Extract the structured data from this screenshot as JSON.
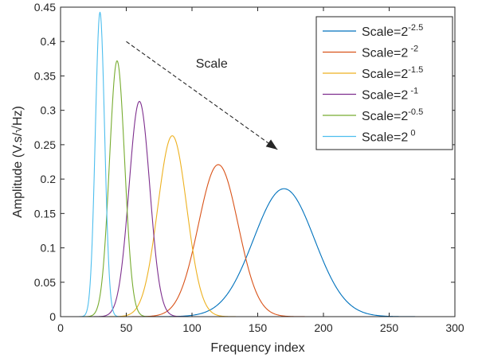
{
  "chart_data": {
    "type": "line",
    "xlabel": "Frequency index",
    "ylabel": "Amplitude (V.s/√Hz)",
    "xlim": [
      0,
      300
    ],
    "ylim": [
      0,
      0.45
    ],
    "x_ticks": [
      0,
      50,
      100,
      150,
      200,
      250,
      300
    ],
    "y_ticks": [
      0,
      0.05,
      0.1,
      0.15,
      0.2,
      0.25,
      0.3,
      0.35,
      0.4,
      0.45
    ],
    "x_tick_labels": [
      "0",
      "50",
      "100",
      "150",
      "200",
      "250",
      "300"
    ],
    "y_tick_labels": [
      "0",
      "0.05",
      "0.1",
      "0.15",
      "0.2",
      "0.25",
      "0.3",
      "0.35",
      "0.4",
      "0.45"
    ],
    "grid": false,
    "legend_position": "top-right",
    "series": [
      {
        "name": "Scale=2^-2.5",
        "label_base": "Scale=2",
        "label_exp": "-2.5",
        "color": "#0072BD",
        "x": [
          100,
          120,
          140,
          150,
          160,
          170,
          180,
          190,
          200,
          220,
          240,
          260
        ],
        "y": [
          0.001,
          0.018,
          0.09,
          0.137,
          0.175,
          0.186,
          0.175,
          0.137,
          0.09,
          0.018,
          0.001,
          0.0
        ]
      },
      {
        "name": "Scale=2^-2",
        "label_base": "Scale=2",
        "label_exp": " -2",
        "color": "#D95319",
        "x": [
          70,
          85,
          100,
          110,
          120,
          130,
          140,
          155,
          170
        ],
        "y": [
          0.0,
          0.015,
          0.086,
          0.168,
          0.221,
          0.168,
          0.086,
          0.015,
          0.0
        ]
      },
      {
        "name": "Scale=2^-1.5",
        "label_base": "Scale=2",
        "label_exp": "-1.5",
        "color": "#EDB120",
        "x": [
          50,
          60,
          70,
          77,
          85,
          93,
          100,
          110,
          120
        ],
        "y": [
          0.0,
          0.02,
          0.105,
          0.2,
          0.263,
          0.2,
          0.105,
          0.02,
          0.0
        ]
      },
      {
        "name": "Scale=2^-1",
        "label_base": "Scale=2",
        "label_exp": " -1",
        "color": "#7E2F8E",
        "x": [
          35,
          43,
          50,
          55,
          60,
          65,
          70,
          77,
          85
        ],
        "y": [
          0.0,
          0.03,
          0.125,
          0.237,
          0.313,
          0.237,
          0.125,
          0.03,
          0.0
        ]
      },
      {
        "name": "Scale=2^-0.5",
        "label_base": "Scale=2",
        "label_exp": "-0.5",
        "color": "#77AC30",
        "x": [
          20,
          30,
          35,
          39,
          43,
          47,
          51,
          56,
          65
        ],
        "y": [
          0.0,
          0.03,
          0.147,
          0.283,
          0.372,
          0.283,
          0.147,
          0.03,
          0.0
        ]
      },
      {
        "name": "Scale=2^0",
        "label_base": "Scale=2",
        "label_exp": " 0",
        "color": "#4DBEEE",
        "x": [
          15,
          22,
          25,
          28,
          30,
          32,
          35,
          38,
          45
        ],
        "y": [
          0.0,
          0.035,
          0.175,
          0.336,
          0.443,
          0.336,
          0.175,
          0.035,
          0.0
        ]
      }
    ],
    "annotations": [
      {
        "text": "Scale",
        "x": 115,
        "y": 0.362
      },
      {
        "type": "arrow",
        "x_from": 50,
        "y_from": 0.4,
        "x_to": 165,
        "y_to": 0.243
      }
    ]
  }
}
